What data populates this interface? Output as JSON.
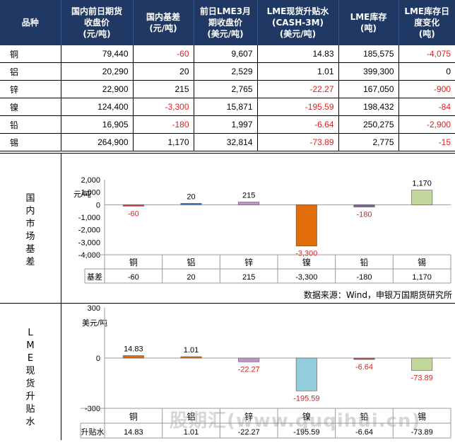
{
  "table": {
    "headers": [
      "品种",
      "国内前日期货\n收盘价\n(元/吨)",
      "国内基差\n(元/吨)",
      "前日LME3月\n期收盘价\n(美元/吨)",
      "LME现货升贴水\n(CASH-3M)\n(美元/吨)",
      "LME库存\n(吨)",
      "LME库存日\n度变化\n(吨)"
    ],
    "rows": [
      {
        "name": "铜",
        "price": "79,440",
        "basis": "-60",
        "lme": "9,607",
        "spread": "14.83",
        "stock": "185,575",
        "change": "-4,075"
      },
      {
        "name": "铝",
        "price": "20,290",
        "basis": "20",
        "lme": "2,529",
        "spread": "1.01",
        "stock": "399,300",
        "change": "0"
      },
      {
        "name": "锌",
        "price": "22,900",
        "basis": "215",
        "lme": "2,765",
        "spread": "-22.27",
        "stock": "167,050",
        "change": "-900"
      },
      {
        "name": "镍",
        "price": "124,400",
        "basis": "-3,300",
        "lme": "15,871",
        "spread": "-195.59",
        "stock": "198,432",
        "change": "-84"
      },
      {
        "name": "铅",
        "price": "16,905",
        "basis": "-180",
        "lme": "1,997",
        "spread": "-6.64",
        "stock": "250,275",
        "change": "-2,900"
      },
      {
        "name": "锡",
        "price": "264,900",
        "basis": "1,170",
        "lme": "32,814",
        "spread": "-73.89",
        "stock": "2,775",
        "change": "-15"
      }
    ]
  },
  "section1_label": "国内市场基差",
  "section2_label": "LME现货升贴水",
  "source_text": "数据来源：Wind，申银万国期货研究所",
  "watermark": "股期汇(www.guqihui.cn)",
  "colors": {
    "header_bg": "#1f3864",
    "negative": "#e02020"
  },
  "chart_data": [
    {
      "type": "bar",
      "categories": [
        "铜",
        "铝",
        "锌",
        "镍",
        "铅",
        "锡"
      ],
      "values": [
        -60,
        20,
        215,
        -3300,
        -180,
        1170
      ],
      "value_labels": [
        "-60",
        "20",
        "215",
        "-3,300",
        "-180",
        "1,170"
      ],
      "ylabel": "元/吨",
      "ylim": [
        -4000,
        2000
      ],
      "yticks": [
        "2,000",
        "1,000",
        "0",
        "-1,000",
        "-2,000",
        "-3,000",
        "-4,000"
      ],
      "table_row_label": "基差",
      "bar_colors": [
        "#c0504d",
        "#4f81bd",
        "#c097c0",
        "#e36c0a",
        "#8064a2",
        "#c3d69b"
      ]
    },
    {
      "type": "bar",
      "categories": [
        "铜",
        "铝",
        "锌",
        "镍",
        "铅",
        "锡"
      ],
      "values": [
        14.83,
        1.01,
        -22.27,
        -195.59,
        -6.64,
        -73.89
      ],
      "value_labels": [
        "14.83",
        "1.01",
        "-22.27",
        "-195.59",
        "-6.64",
        "-73.89"
      ],
      "ylabel": "美元/吨",
      "ylim": [
        -300,
        300
      ],
      "yticks": [
        "300",
        "0",
        "-300"
      ],
      "table_row_label": "升贴水",
      "bar_colors": [
        "#e36c0a",
        "#e36c0a",
        "#c097c0",
        "#92cddc",
        "#c0504d",
        "#c3d69b"
      ]
    }
  ]
}
